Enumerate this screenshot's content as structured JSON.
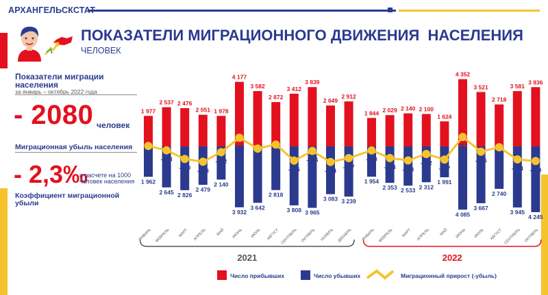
{
  "header": {
    "org": "АРХАНГЕЛЬСКСТАТ",
    "title": "ПОКАЗАТЕЛИ МИГРАЦИОННОГО ДВИЖЕНИЯ  НАСЕЛЕНИЯ",
    "subtitle": "ЧЕЛОВЕК"
  },
  "colors": {
    "arrivals": "#e3111f",
    "departures": "#2b3a8f",
    "net": "#f6c32c",
    "year_2021": "#555555",
    "year_2022": "#e3111f"
  },
  "summary": {
    "heading": "Показатели миграции населения",
    "period": "за январь – октябрь 2022 года",
    "loss_value": "- 2080",
    "loss_unit": "человек",
    "loss_label": "Миграционная убыль населения",
    "coef_value": "- 2,3‰",
    "coef_note": "в расчете на 1000 человек населения",
    "coef_label": "Коэффициент миграционной убыли"
  },
  "chart_data": {
    "type": "bar",
    "categories": [
      "ЯНВАРЬ",
      "ФЕВРАЛЬ",
      "МАРТ",
      "АПРЕЛЬ",
      "МАЙ",
      "ИЮНЬ",
      "ИЮЛЬ",
      "АВГУСТ",
      "СЕНТЯБРЬ",
      "ОКТЯБРЬ",
      "НОЯБРЬ",
      "ДЕКАБРЬ",
      "ЯНВАРЬ",
      "ФЕВРАЛЬ",
      "МАРТ",
      "АПРЕЛЬ",
      "МАЙ",
      "ИЮНЬ",
      "ИЮЛЬ",
      "АВГУСТ",
      "СЕНТЯБРЬ",
      "ОКТЯБРЬ"
    ],
    "groups": [
      {
        "label": "2021",
        "start": 0,
        "end": 11
      },
      {
        "label": "2022",
        "start": 12,
        "end": 21
      }
    ],
    "series": [
      {
        "name": "Число прибывших",
        "values": [
          1977,
          2537,
          2476,
          2051,
          1978,
          4177,
          3582,
          2872,
          3412,
          3839,
          2649,
          2912,
          1844,
          2029,
          2140,
          2100,
          1624,
          4352,
          3521,
          2718,
          3581,
          3836
        ],
        "labels": [
          "1 977",
          "2 537",
          "2 476",
          "2 051",
          "1 978",
          "4 177",
          "3 582",
          "2 872",
          "3 412",
          "3 839",
          "2 649",
          "2 912",
          "1 844",
          "2 029",
          "2 140",
          "2 100",
          "1 624",
          "4 352",
          "3 521",
          "2 718",
          "3 581",
          "3 836"
        ]
      },
      {
        "name": "Число убывших",
        "values": [
          1962,
          2645,
          2826,
          2479,
          2140,
          3932,
          3642,
          2818,
          3808,
          3965,
          3083,
          3239,
          1954,
          2353,
          2533,
          2312,
          1991,
          4085,
          3667,
          2740,
          3945,
          4245
        ],
        "labels": [
          "1 962",
          "2 645",
          "2 826",
          "2 479",
          "2 140",
          "3 932",
          "3 642",
          "2 818",
          "3 808",
          "3 965",
          "3 083",
          "3 239",
          "1 954",
          "2 353",
          "2 533",
          "2 312",
          "1 991",
          "4 085",
          "3 667",
          "2 740",
          "3 945",
          "4 245"
        ]
      },
      {
        "name": "Миграционный прирост (-убыль)",
        "values": [
          15,
          -108,
          -350,
          -428,
          -162,
          245,
          -60,
          54,
          -396,
          -126,
          -434,
          -327,
          -110,
          -324,
          -393,
          -212,
          -367,
          267,
          -146,
          -22,
          -364,
          -409
        ],
        "labels": [
          "15",
          "-108",
          "-350",
          "-428",
          "-162",
          "245",
          "-60",
          "54",
          "-396",
          "-126",
          "-434",
          "-327",
          "-110",
          "-324",
          "-393",
          "-212",
          "-367",
          "267",
          "-146",
          "-22",
          "-364",
          "-409"
        ]
      }
    ]
  }
}
